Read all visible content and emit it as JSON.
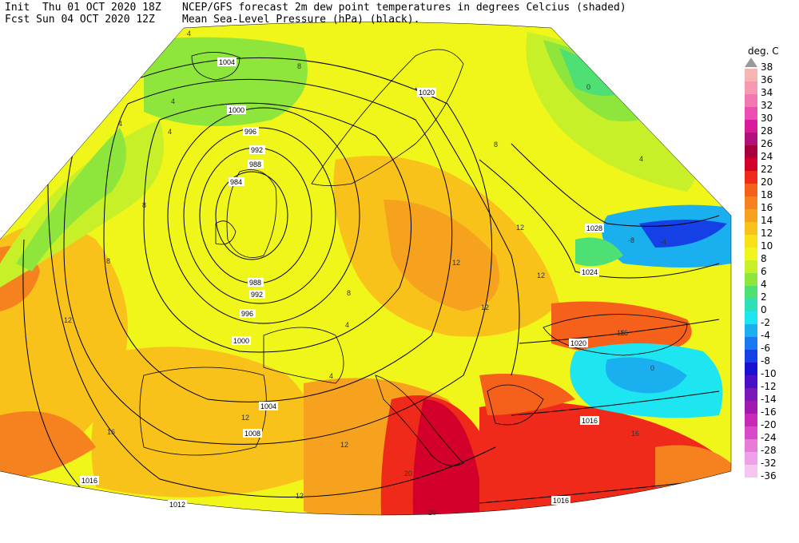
{
  "header": {
    "init": "Init  Thu 01 OCT 2020 18Z",
    "fcst": "Fcst Sun 04 OCT 2020 12Z",
    "title1": "NCEP/GFS forecast 2m dew point temperatures in degrees Celcius (shaded)",
    "title2": "Mean Sea-Level Pressure (hPa) (black)."
  },
  "legend": {
    "unit": "deg. C",
    "items": [
      {
        "label": "38",
        "color": "#a0a0a0"
      },
      {
        "label": "36",
        "color": "#f5b5b5"
      },
      {
        "label": "34",
        "color": "#f59ab0"
      },
      {
        "label": "32",
        "color": "#f07ab0"
      },
      {
        "label": "30",
        "color": "#ee4db2"
      },
      {
        "label": "28",
        "color": "#d81b9a"
      },
      {
        "label": "26",
        "color": "#b2107a"
      },
      {
        "label": "24",
        "color": "#a8003c"
      },
      {
        "label": "22",
        "color": "#d2002a"
      },
      {
        "label": "20",
        "color": "#f02a1a"
      },
      {
        "label": "18",
        "color": "#f5601a"
      },
      {
        "label": "16",
        "color": "#f5821e"
      },
      {
        "label": "14",
        "color": "#f7a21e"
      },
      {
        "label": "12",
        "color": "#f9c21a"
      },
      {
        "label": "10",
        "color": "#f7e21a"
      },
      {
        "label": "8",
        "color": "#f0f51a"
      },
      {
        "label": "6",
        "color": "#c8f028"
      },
      {
        "label": "4",
        "color": "#8ee63c"
      },
      {
        "label": "2",
        "color": "#4ee072"
      },
      {
        "label": "0",
        "color": "#2de0b8"
      },
      {
        "label": "-2",
        "color": "#1ee6f0"
      },
      {
        "label": "-4",
        "color": "#1ab0f0"
      },
      {
        "label": "-6",
        "color": "#1a78f0"
      },
      {
        "label": "-8",
        "color": "#1440e6"
      },
      {
        "label": "-10",
        "color": "#1a10d2"
      },
      {
        "label": "-12",
        "color": "#4a10c8"
      },
      {
        "label": "-14",
        "color": "#7a18b8"
      },
      {
        "label": "-16",
        "color": "#a01ab0"
      },
      {
        "label": "-20",
        "color": "#c82ab8"
      },
      {
        "label": "-24",
        "color": "#d84ac8"
      },
      {
        "label": "-28",
        "color": "#e87ad8"
      },
      {
        "label": "-32",
        "color": "#f0a0e8"
      },
      {
        "label": "-36",
        "color": "#f6c6f2"
      }
    ]
  },
  "isobar_labels": [
    "1004",
    "1000",
    "996",
    "992",
    "988",
    "984",
    "988",
    "992",
    "996",
    "1000",
    "1004",
    "1008",
    "1012",
    "1016",
    "1020",
    "1024",
    "1028",
    "1016",
    "1016",
    "1020"
  ],
  "dewpoint_labels": [
    "4",
    "4",
    "4",
    "4",
    "8",
    "8",
    "8",
    "12",
    "12",
    "12",
    "12",
    "12",
    "16",
    "16",
    "12",
    "12",
    "16",
    "0",
    "4",
    "8",
    "-8",
    "-4",
    "0",
    "4",
    "8",
    "20",
    "20",
    "16",
    "12",
    "4"
  ]
}
